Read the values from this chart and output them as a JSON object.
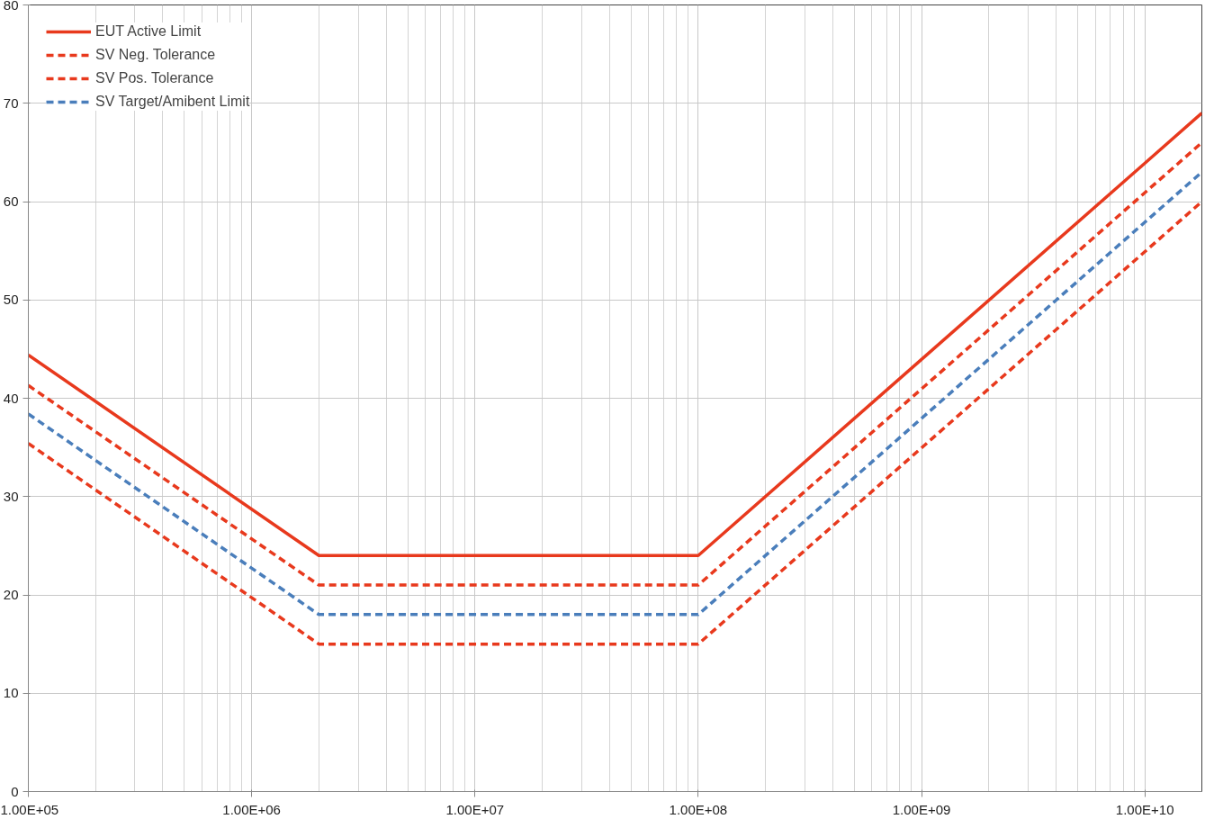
{
  "chart_data": {
    "type": "line",
    "x": [
      100000,
      2000000,
      100000000,
      18000000000
    ],
    "series": [
      {
        "name": "EUT Active Limit",
        "color": "#e8391d",
        "line_style": "solid",
        "values": [
          44.4,
          24,
          24,
          69
        ]
      },
      {
        "name": "SV Neg. Tolerance",
        "color": "#e8391d",
        "line_style": "dashed",
        "values": [
          41.3,
          21,
          21,
          66
        ]
      },
      {
        "name": "SV Pos. Tolerance",
        "color": "#e8391d",
        "line_style": "dashed",
        "values": [
          35.4,
          15,
          15,
          60
        ]
      },
      {
        "name": "SV Target/Amibent Limit",
        "color": "#4a7ebb",
        "line_style": "dashed",
        "values": [
          38.4,
          18,
          18,
          63
        ]
      }
    ],
    "log": "x",
    "xlim": [
      100000,
      18000000000
    ],
    "xticks": [
      {
        "value": 100000,
        "label": "1.00E+05"
      },
      {
        "value": 1000000,
        "label": "1.00E+06"
      },
      {
        "value": 10000000,
        "label": "1.00E+07"
      },
      {
        "value": 100000000,
        "label": "1.00E+08"
      },
      {
        "value": 1000000000,
        "label": "1.00E+09"
      },
      {
        "value": 10000000000,
        "label": "1.00E+10"
      }
    ],
    "ylim": [
      0,
      80
    ],
    "yticks": [
      0,
      10,
      20,
      30,
      40,
      50,
      60,
      70,
      80
    ],
    "grid": true,
    "legend": "top left"
  }
}
